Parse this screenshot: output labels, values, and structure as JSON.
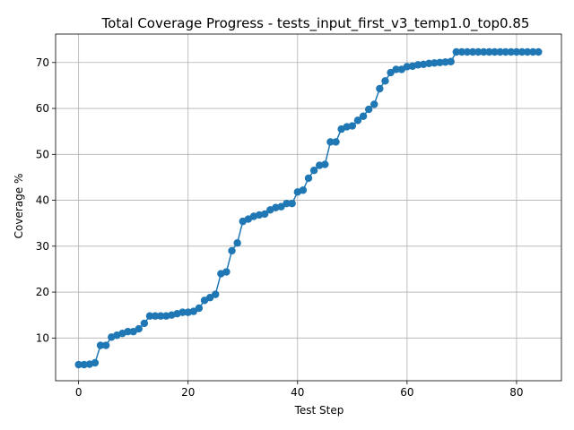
{
  "chart_data": {
    "type": "line",
    "title": "Total Coverage Progress - tests_input_first_v3_temp1.0_top0.85",
    "xlabel": "Test Step",
    "ylabel": "Coverage %",
    "xlim": [
      -4.2,
      88.2
    ],
    "ylim": [
      0.7,
      76.2
    ],
    "xticks": [
      0,
      20,
      40,
      60,
      80
    ],
    "yticks": [
      10,
      20,
      30,
      40,
      50,
      60,
      70
    ],
    "grid": true,
    "series": [
      {
        "color": "#1f77b4",
        "marker": "circle",
        "x": [
          0,
          1,
          2,
          3,
          4,
          5,
          6,
          7,
          8,
          9,
          10,
          11,
          12,
          13,
          14,
          15,
          16,
          17,
          18,
          19,
          20,
          21,
          22,
          23,
          24,
          25,
          26,
          27,
          28,
          29,
          30,
          31,
          32,
          33,
          34,
          35,
          36,
          37,
          38,
          39,
          40,
          41,
          42,
          43,
          44,
          45,
          46,
          47,
          48,
          49,
          50,
          51,
          52,
          53,
          54,
          55,
          56,
          57,
          58,
          59,
          60,
          61,
          62,
          63,
          64,
          65,
          66,
          67,
          68,
          69,
          70,
          71,
          72,
          73,
          74,
          75,
          76,
          77,
          78,
          79,
          80,
          81,
          82,
          83,
          84
        ],
        "y": [
          4.2,
          4.2,
          4.3,
          4.6,
          8.4,
          8.4,
          10.2,
          10.6,
          11.0,
          11.4,
          11.4,
          12.0,
          13.2,
          14.8,
          14.8,
          14.8,
          14.8,
          15.0,
          15.3,
          15.6,
          15.6,
          15.8,
          16.5,
          18.2,
          18.8,
          19.5,
          24.0,
          24.4,
          29.0,
          30.7,
          35.4,
          35.9,
          36.5,
          36.8,
          37.0,
          37.9,
          38.4,
          38.6,
          39.3,
          39.3,
          41.8,
          42.2,
          44.8,
          46.5,
          47.6,
          47.8,
          52.7,
          52.7,
          55.5,
          56.0,
          56.2,
          57.4,
          58.3,
          59.8,
          60.9,
          64.3,
          66.0,
          67.8,
          68.5,
          68.5,
          69.1,
          69.2,
          69.5,
          69.6,
          69.8,
          69.9,
          70.0,
          70.1,
          70.2,
          72.3,
          72.3,
          72.3,
          72.3,
          72.3,
          72.3,
          72.3,
          72.3,
          72.3,
          72.3,
          72.3,
          72.3,
          72.3,
          72.3,
          72.3,
          72.3
        ]
      }
    ]
  }
}
